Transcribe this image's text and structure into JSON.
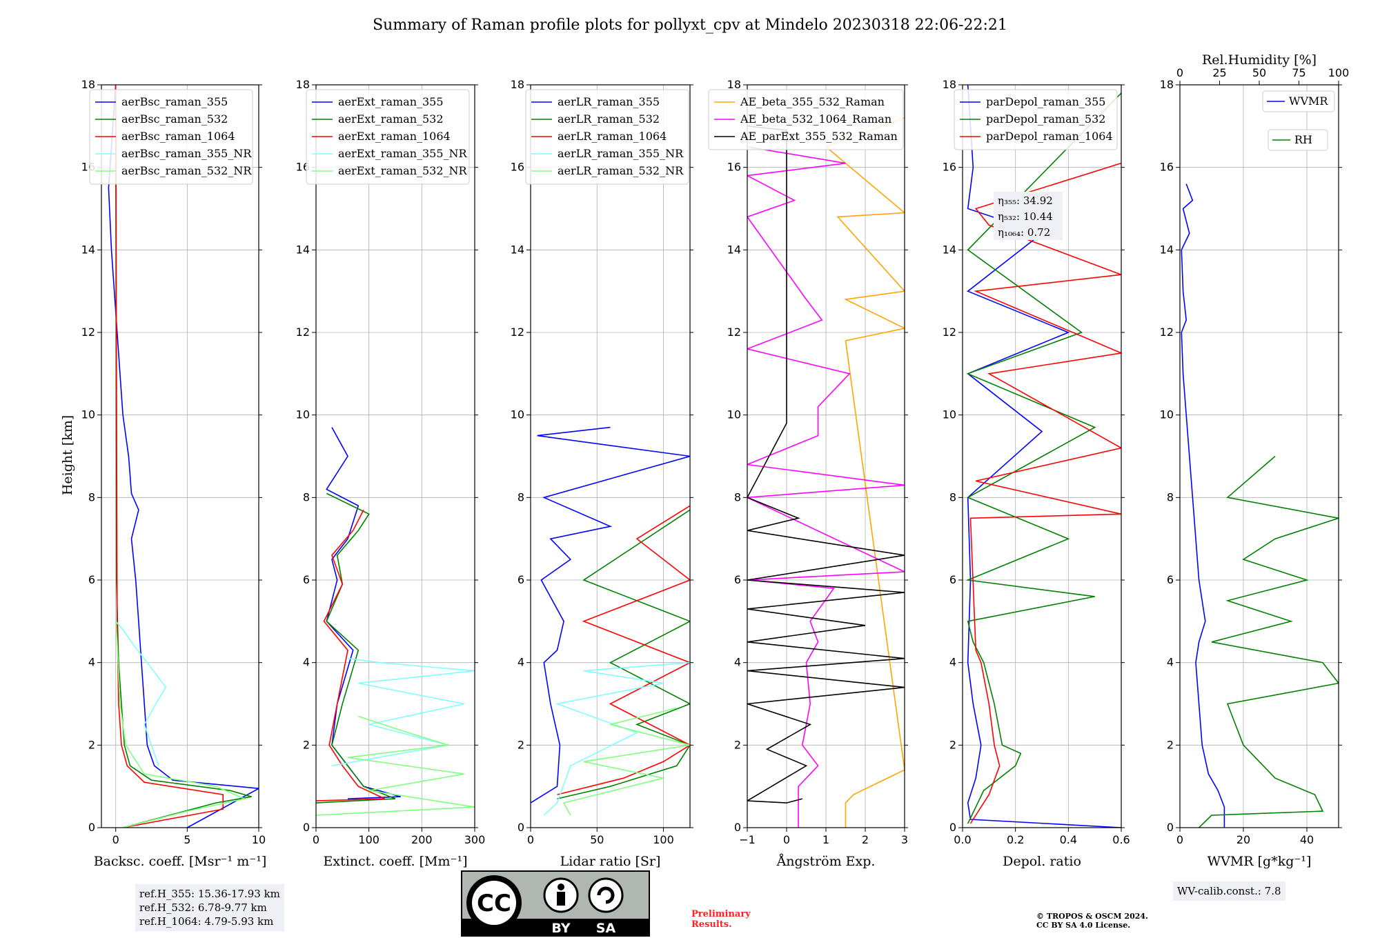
{
  "title": "Summary of Raman profile plots for pollyxt_cpv at Mindelo 20230318 22:06-22:21",
  "common_ylabel": "Height [km]",
  "colors": {
    "c355": "#0000ff",
    "c532": "#008000",
    "c1064": "#ff0000",
    "c355nr": "#80ffff",
    "c532nr": "#80ff80",
    "orange": "#ffa500",
    "magenta": "#ff00ff",
    "black": "#000000"
  },
  "chart_data": [
    {
      "type": "line",
      "xlabel": "Backsc. coeff. [Msr⁻¹ m⁻¹]",
      "xlim": [
        -1,
        10
      ],
      "ylim": [
        0,
        18
      ],
      "xticks": [
        0,
        5,
        10
      ],
      "xtick_labels": [
        "0",
        "5",
        "10"
      ],
      "yticks": [
        0,
        2,
        4,
        6,
        8,
        10,
        12,
        14,
        16,
        18
      ],
      "ytick_labels": [
        "0",
        "2",
        "4",
        "6",
        "8",
        "10",
        "12",
        "14",
        "16",
        "18"
      ],
      "legend": "upper center",
      "series": [
        {
          "name": "aerBsc_raman_355",
          "color": "#0000ff",
          "x": [
            5,
            10,
            4,
            2.7,
            2.2,
            2,
            1.8,
            1.6,
            1.4,
            1.1,
            1.6,
            1.1,
            0.9,
            0.5,
            0.3,
            0.1,
            -0.3,
            -0.5,
            0
          ],
          "y": [
            0,
            0.95,
            1.15,
            1.5,
            2,
            3,
            4,
            5,
            6,
            7,
            7.7,
            8.1,
            9,
            10,
            11,
            12,
            14,
            15.5,
            18
          ]
        },
        {
          "name": "aerBsc_raman_532",
          "color": "#008000",
          "x": [
            0.5,
            7,
            9.5,
            8,
            2.5,
            1,
            0.6,
            0.4,
            0.2,
            0.05,
            0
          ],
          "y": [
            0,
            0.6,
            0.75,
            0.9,
            1.15,
            1.5,
            2,
            3,
            4,
            6,
            18
          ]
        },
        {
          "name": "aerBsc_raman_1064",
          "color": "#ff0000",
          "x": [
            0.5,
            7.5,
            7.5,
            2,
            0.8,
            0.4,
            0.2,
            0.1,
            0
          ],
          "y": [
            0,
            0.45,
            0.8,
            1.1,
            1.5,
            2,
            3,
            5,
            18
          ]
        },
        {
          "name": "aerBsc_raman_355_NR",
          "color": "#80ffff",
          "x": [
            3,
            2.5,
            2,
            2.8,
            3.5,
            2.2,
            1.3,
            0.5,
            0
          ],
          "y": [
            1.5,
            2,
            2.5,
            3,
            3.4,
            4,
            4.4,
            4.8,
            5
          ]
        },
        {
          "name": "aerBsc_raman_532_NR",
          "color": "#80ff80",
          "x": [
            0.5,
            5,
            9,
            7,
            2,
            0.7,
            0.3,
            0.1,
            0
          ],
          "y": [
            0,
            0.4,
            0.7,
            1,
            1.3,
            2,
            3,
            4.5,
            5
          ]
        }
      ]
    },
    {
      "type": "line",
      "xlabel": "Extinct. coeff. [Mm⁻¹]",
      "xlim": [
        0,
        300
      ],
      "ylim": [
        0,
        18
      ],
      "xticks": [
        0,
        100,
        200,
        300
      ],
      "xtick_labels": [
        "0",
        "100",
        "200",
        "300"
      ],
      "yticks": [
        0,
        2,
        4,
        6,
        8,
        10,
        12,
        14,
        16,
        18
      ],
      "ytick_labels": [
        "0",
        "2",
        "4",
        "6",
        "8",
        "10",
        "12",
        "14",
        "16",
        "18"
      ],
      "legend": "upper left",
      "series": [
        {
          "name": "aerExt_raman_355",
          "color": "#0000ff",
          "x": [
            60,
            160,
            90,
            60,
            30,
            40,
            70,
            20,
            40,
            30,
            60,
            80,
            20,
            60,
            30
          ],
          "y": [
            0.7,
            0.75,
            1,
            1.5,
            2,
            3,
            4.3,
            5,
            6,
            6.5,
            7,
            7.8,
            8.2,
            9,
            9.7
          ]
        },
        {
          "name": "aerExt_raman_532",
          "color": "#008000",
          "x": [
            0,
            150,
            90,
            60,
            30,
            50,
            80,
            20,
            50,
            40,
            80,
            100,
            20
          ],
          "y": [
            0.6,
            0.7,
            1,
            1.5,
            2,
            3,
            4.3,
            5,
            5.9,
            6.6,
            7.2,
            7.6,
            8.1
          ]
        },
        {
          "name": "aerExt_raman_1064",
          "color": "#ff0000",
          "x": [
            0,
            130,
            80,
            50,
            25,
            40,
            60,
            15,
            50,
            30,
            70,
            90
          ],
          "y": [
            0.65,
            0.7,
            1,
            1.5,
            2,
            3,
            4.3,
            5,
            5.9,
            6.6,
            7.2,
            7.7
          ]
        },
        {
          "name": "aerExt_raman_355_NR",
          "color": "#80ffff",
          "x": [
            30,
            250,
            100,
            280,
            80,
            300,
            120,
            60
          ],
          "y": [
            1.5,
            2,
            2.5,
            3,
            3.5,
            3.8,
            4,
            4.1
          ]
        },
        {
          "name": "aerExt_raman_532_NR",
          "color": "#80ff80",
          "x": [
            0,
            300,
            100,
            280,
            60,
            250,
            150,
            80
          ],
          "y": [
            0.3,
            0.5,
            0.9,
            1.3,
            1.7,
            2,
            2.4,
            2.7
          ]
        }
      ]
    },
    {
      "type": "line",
      "xlabel": "Lidar ratio [Sr]",
      "xlim": [
        0,
        120
      ],
      "ylim": [
        0,
        18
      ],
      "xticks": [
        0,
        50,
        100
      ],
      "xtick_labels": [
        "0",
        "50",
        "100"
      ],
      "yticks": [
        0,
        2,
        4,
        6,
        8,
        10,
        12,
        14,
        16,
        18
      ],
      "ytick_labels": [
        "0",
        "2",
        "4",
        "6",
        "8",
        "10",
        "12",
        "14",
        "16",
        "18"
      ],
      "legend": "upper left",
      "series": [
        {
          "name": "aerLR_raman_355",
          "color": "#0000ff",
          "x": [
            0,
            20,
            22,
            15,
            10,
            20,
            25,
            8,
            30,
            15,
            60,
            10,
            120,
            5,
            60
          ],
          "y": [
            0.6,
            1,
            2,
            3,
            4,
            4.3,
            5,
            6,
            6.5,
            7,
            7.3,
            8,
            9,
            9.5,
            9.7
          ]
        },
        {
          "name": "aerLR_raman_532",
          "color": "#008000",
          "x": [
            20,
            60,
            110,
            120,
            80,
            120,
            60,
            120,
            40,
            120
          ],
          "y": [
            0.7,
            1,
            1.5,
            2,
            2.5,
            3,
            4,
            5,
            6,
            7.7
          ]
        },
        {
          "name": "aerLR_raman_1064",
          "color": "#ff0000",
          "x": [
            20,
            70,
            100,
            120,
            60,
            120,
            40,
            120,
            80,
            120
          ],
          "y": [
            0.8,
            1.2,
            1.6,
            2,
            3,
            4,
            5,
            6,
            7,
            7.8
          ]
        },
        {
          "name": "aerLR_raman_355_NR",
          "color": "#80ffff",
          "x": [
            10,
            20,
            30,
            80,
            20,
            100,
            40,
            120
          ],
          "y": [
            0.3,
            0.6,
            1.5,
            2.3,
            3,
            3.5,
            3.8,
            4
          ]
        },
        {
          "name": "aerLR_raman_532_NR",
          "color": "#80ff80",
          "x": [
            30,
            25,
            100,
            40,
            120,
            60,
            110
          ],
          "y": [
            0.3,
            0.6,
            1.2,
            1.6,
            2,
            2.5,
            2.9
          ]
        }
      ]
    },
    {
      "type": "line",
      "xlabel": "Ångström Exp.",
      "xlim": [
        -1,
        3
      ],
      "ylim": [
        0,
        18
      ],
      "xticks": [
        -1,
        0,
        1,
        2,
        3
      ],
      "xtick_labels": [
        "−1",
        "0",
        "1",
        "2",
        "3"
      ],
      "yticks": [
        0,
        2,
        4,
        6,
        8,
        10,
        12,
        14,
        16,
        18
      ],
      "ytick_labels": [
        "0",
        "2",
        "4",
        "6",
        "8",
        "10",
        "12",
        "14",
        "16",
        "18"
      ],
      "legend": "upper center",
      "series": [
        {
          "name": "AE_beta_355_532_Raman",
          "color": "#ffa500",
          "x": [
            1.5,
            1.5,
            1.7,
            3,
            1.5,
            3,
            1.5,
            3,
            1.3,
            3,
            1,
            3
          ],
          "y": [
            0,
            0.6,
            0.8,
            1.4,
            11.8,
            12.1,
            12.8,
            13,
            14.8,
            14.9,
            16.5,
            17.2
          ]
        },
        {
          "name": "AE_beta_532_1064_Raman",
          "color": "#ff00ff",
          "x": [
            0.3,
            0.3,
            0.8,
            0.4,
            0.6,
            0.5,
            0.8,
            0.6,
            1.2,
            -1,
            3,
            -1,
            3,
            -1,
            0.8,
            0.8,
            1.6,
            -1,
            0.9,
            0.5,
            -1,
            0.2,
            -1,
            1.5,
            -1
          ],
          "y": [
            0,
            1,
            1.5,
            2,
            3,
            4,
            4.5,
            5,
            5.8,
            6,
            6.2,
            8,
            8.3,
            8.8,
            9.5,
            10.2,
            11,
            11.6,
            12.3,
            12.8,
            14.8,
            15.2,
            15.8,
            16.1,
            16.5
          ]
        },
        {
          "name": "AE_parExt_355_532_Raman",
          "color": "#000000",
          "x": [
            0.4,
            0,
            -1,
            0.5,
            -0.5,
            0.6,
            -1,
            3,
            -1,
            3,
            -1,
            2,
            -1,
            3,
            -1,
            3,
            -1,
            0.3,
            -1,
            0,
            0,
            -1
          ],
          "y": [
            0.7,
            0.6,
            0.65,
            1.5,
            1.9,
            2.5,
            3,
            3.4,
            3.8,
            4.1,
            4.5,
            4.9,
            5.3,
            5.7,
            6,
            6.6,
            7.2,
            7.5,
            8,
            9.8,
            16.9,
            17
          ]
        }
      ]
    },
    {
      "type": "line",
      "xlabel": "Depol. ratio",
      "xlim": [
        0,
        0.6
      ],
      "ylim": [
        0,
        18
      ],
      "xticks": [
        0,
        0.2,
        0.4,
        0.6
      ],
      "xtick_labels": [
        "0.0",
        "0.2",
        "0.4",
        "0.6"
      ],
      "yticks": [
        0,
        2,
        4,
        6,
        8,
        10,
        12,
        14,
        16,
        18
      ],
      "ytick_labels": [
        "0",
        "2",
        "4",
        "6",
        "8",
        "10",
        "12",
        "14",
        "16",
        "18"
      ],
      "legend": "upper left",
      "series": [
        {
          "name": "parDepol_raman_355",
          "color": "#0000ff",
          "x": [
            0.6,
            0.03,
            0.02,
            0.05,
            0.07,
            0.04,
            0.02,
            0.03,
            0.02,
            0.3,
            0.02,
            0.4,
            0.02,
            0.3,
            0.02,
            0.04,
            0.02
          ],
          "y": [
            0,
            0.2,
            0.6,
            1.2,
            2,
            3,
            4,
            6,
            8,
            9.6,
            11,
            12,
            13,
            14.4,
            15,
            16,
            18
          ]
        },
        {
          "name": "parDepol_raman_532",
          "color": "#008000",
          "x": [
            0.02,
            0.08,
            0.2,
            0.22,
            0.15,
            0.12,
            0.08,
            0.04,
            0.02,
            0.5,
            0.02,
            0.4,
            0.02,
            0.5,
            0.02,
            0.45,
            0.02,
            0.6
          ],
          "y": [
            0.1,
            0.9,
            1.5,
            1.8,
            2,
            3,
            4,
            4.5,
            5,
            5.6,
            6,
            7,
            8,
            9.7,
            11,
            12,
            14,
            17.8
          ]
        },
        {
          "name": "parDepol_raman_1064",
          "color": "#ff0000",
          "x": [
            0.03,
            0.1,
            0.14,
            0.12,
            0.1,
            0.07,
            0.05,
            0.03,
            0.6,
            0.05,
            0.6,
            0.1,
            0.6,
            0.05,
            0.6,
            0.1,
            0.05,
            0.6
          ],
          "y": [
            0.1,
            0.8,
            1.5,
            2,
            3,
            4,
            4.3,
            7.5,
            7.6,
            8.4,
            9.2,
            11,
            11.5,
            13,
            13.4,
            14.6,
            15,
            16.1
          ]
        }
      ],
      "annotations": [
        {
          "label": "η₃₅₅: 34.92"
        },
        {
          "label": "η₅₃₂: 10.44"
        },
        {
          "label": "η₁₀₆₄: 0.72"
        }
      ]
    },
    {
      "type": "line",
      "xlabel": "WVMR [g*kg⁻¹]",
      "xlim": [
        0,
        50
      ],
      "ylim": [
        0,
        18
      ],
      "xticks": [
        0,
        20,
        40
      ],
      "xtick_labels": [
        "0",
        "20",
        "40"
      ],
      "yticks": [
        0,
        2,
        4,
        6,
        8,
        10,
        12,
        14,
        16,
        18
      ],
      "ytick_labels": [
        "0",
        "2",
        "4",
        "6",
        "8",
        "10",
        "12",
        "14",
        "16",
        "18"
      ],
      "secondary_xaxis": {
        "label": "Rel.Humidity [%]",
        "xlim": [
          0,
          100
        ],
        "ticks": [
          0,
          25,
          50,
          75,
          100
        ],
        "tick_labels": [
          "0",
          "25",
          "50",
          "75",
          "100"
        ]
      },
      "legend": "upper right",
      "series": [
        {
          "name": "WVMR",
          "color": "#0000ff",
          "axis": "bottom",
          "x": [
            14,
            14,
            12,
            9,
            7,
            6,
            5,
            6,
            8,
            6,
            5,
            4,
            3,
            2,
            1,
            0.5,
            2,
            1,
            0.5,
            3,
            1,
            4,
            2
          ],
          "y": [
            0,
            0.5,
            0.9,
            1.3,
            2,
            3,
            4,
            4.5,
            5,
            6,
            7,
            8,
            9,
            10,
            11,
            12,
            12.3,
            13,
            14,
            14.4,
            15,
            15.2,
            15.6
          ]
        },
        {
          "name": "RH",
          "color": "#008000",
          "axis": "top",
          "x": [
            12,
            20,
            90,
            85,
            60,
            40,
            30,
            100,
            90,
            20,
            70,
            30,
            80,
            40,
            60,
            100,
            30,
            60
          ],
          "y": [
            0,
            0.3,
            0.4,
            0.8,
            1.2,
            2,
            3,
            3.5,
            4,
            4.5,
            5,
            5.5,
            6,
            6.5,
            7,
            7.5,
            8,
            9
          ]
        }
      ]
    }
  ],
  "ref_box": {
    "line1": "ref.H_355: 15.36-17.93 km",
    "line2": "ref.H_532: 6.78-9.77 km",
    "line3": "ref.H_1064: 4.79-5.93 km"
  },
  "wv_box": {
    "text": "WV-calib.const.: 7.8"
  },
  "license_badge": {
    "cc": "CC",
    "by": "BY",
    "sa": "SA"
  },
  "preliminary": {
    "line1": "Preliminary",
    "line2": "Results."
  },
  "copyright": {
    "line1": "© TROPOS & OSCM 2024.",
    "line2": "CC BY SA 4.0 License."
  }
}
